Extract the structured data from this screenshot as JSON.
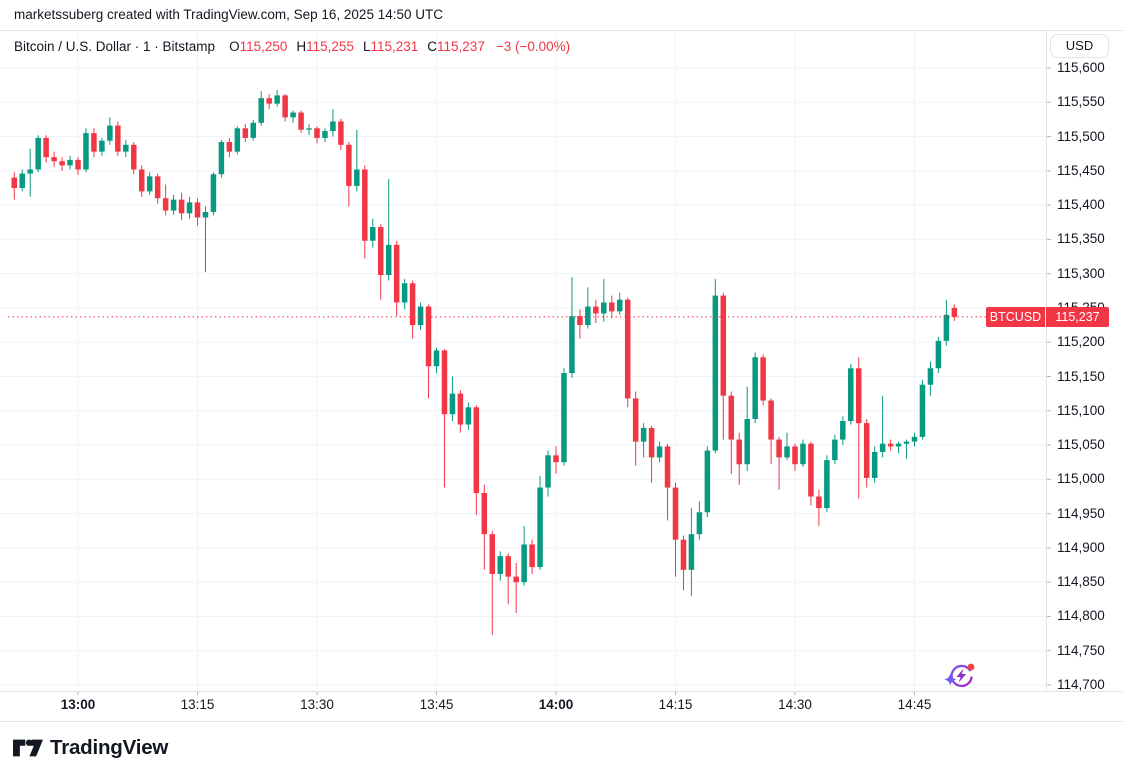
{
  "attribution": "marketssuberg created with TradingView.com, Sep 16, 2025 14:50 UTC",
  "header": {
    "title": "Bitcoin / U.S. Dollar · 1 · Bitstamp",
    "ohlc": [
      {
        "label": "O",
        "value": "115,250"
      },
      {
        "label": "H",
        "value": "115,255"
      },
      {
        "label": "L",
        "value": "115,231"
      },
      {
        "label": "C",
        "value": "115,237"
      }
    ],
    "change": "−3 (−0.00%)"
  },
  "currency_button": "USD",
  "price_flag": {
    "symbol": "BTCUSD",
    "price": "115,237"
  },
  "footer": {
    "logo_text": "TradingView"
  },
  "colors": {
    "up": "#089981",
    "down": "#F23645",
    "accent_red": "#F23645",
    "grid": "#F0F3FA",
    "tick": "#B2B5BE",
    "text": "#131722",
    "border": "#E0E3EB"
  },
  "chart_data": {
    "type": "candlestick",
    "title": "Bitcoin / U.S. Dollar · 1 · Bitstamp",
    "symbol": "BTCUSD",
    "exchange": "Bitstamp",
    "interval": "1",
    "quote_currency": "USD",
    "ylim": [
      114700,
      115600
    ],
    "grid": true,
    "y_ticks": [
      {
        "label": "115,600",
        "value": 115600
      },
      {
        "label": "115,550",
        "value": 115550
      },
      {
        "label": "115,500",
        "value": 115500
      },
      {
        "label": "115,450",
        "value": 115450
      },
      {
        "label": "115,400",
        "value": 115400
      },
      {
        "label": "115,350",
        "value": 115350
      },
      {
        "label": "115,300",
        "value": 115300
      },
      {
        "label": "115,250",
        "value": 115250
      },
      {
        "label": "115,200",
        "value": 115200
      },
      {
        "label": "115,150",
        "value": 115150
      },
      {
        "label": "115,100",
        "value": 115100
      },
      {
        "label": "115,050",
        "value": 115050
      },
      {
        "label": "115,000",
        "value": 115000
      },
      {
        "label": "114,950",
        "value": 114950
      },
      {
        "label": "114,900",
        "value": 114900
      },
      {
        "label": "114,850",
        "value": 114850
      },
      {
        "label": "114,800",
        "value": 114800
      },
      {
        "label": "114,750",
        "value": 114750
      },
      {
        "label": "114,700",
        "value": 114700
      }
    ],
    "x_ticks": [
      {
        "label": "13:00",
        "time": "13:00",
        "bold": true
      },
      {
        "label": "13:15",
        "time": "13:15",
        "bold": false
      },
      {
        "label": "13:30",
        "time": "13:30",
        "bold": false
      },
      {
        "label": "13:45",
        "time": "13:45",
        "bold": false
      },
      {
        "label": "14:00",
        "time": "14:00",
        "bold": true
      },
      {
        "label": "14:15",
        "time": "14:15",
        "bold": false
      },
      {
        "label": "14:30",
        "time": "14:30",
        "bold": false
      },
      {
        "label": "14:45",
        "time": "14:45",
        "bold": false
      }
    ],
    "last_price": {
      "value": 115237,
      "label": "115,237"
    },
    "candles": [
      [
        "12:52",
        115440,
        115448,
        115408,
        115425
      ],
      [
        "12:53",
        115425,
        115452,
        115420,
        115446
      ],
      [
        "12:54",
        115446,
        115482,
        115412,
        115452
      ],
      [
        "12:55",
        115452,
        115502,
        115448,
        115498
      ],
      [
        "12:56",
        115498,
        115502,
        115462,
        115470
      ],
      [
        "12:57",
        115470,
        115478,
        115456,
        115464
      ],
      [
        "12:58",
        115464,
        115470,
        115450,
        115458
      ],
      [
        "12:59",
        115458,
        115472,
        115452,
        115466
      ],
      [
        "13:00",
        115466,
        115470,
        115444,
        115452
      ],
      [
        "13:01",
        115452,
        115512,
        115448,
        115505
      ],
      [
        "13:02",
        115505,
        115512,
        115470,
        115478
      ],
      [
        "13:03",
        115478,
        115498,
        115472,
        115494
      ],
      [
        "13:04",
        115494,
        115528,
        115488,
        115516
      ],
      [
        "13:05",
        115516,
        115522,
        115472,
        115478
      ],
      [
        "13:06",
        115478,
        115495,
        115470,
        115488
      ],
      [
        "13:07",
        115488,
        115492,
        115445,
        115452
      ],
      [
        "13:08",
        115452,
        115458,
        115412,
        115420
      ],
      [
        "13:09",
        115420,
        115448,
        115415,
        115442
      ],
      [
        "13:10",
        115442,
        115446,
        115402,
        115410
      ],
      [
        "13:11",
        115410,
        115430,
        115385,
        115392
      ],
      [
        "13:12",
        115392,
        115415,
        115386,
        115408
      ],
      [
        "13:13",
        115408,
        115418,
        115378,
        115388
      ],
      [
        "13:14",
        115388,
        115412,
        115380,
        115404
      ],
      [
        "13:15",
        115404,
        115410,
        115370,
        115382
      ],
      [
        "13:16",
        115382,
        115398,
        115302,
        115390
      ],
      [
        "13:17",
        115390,
        115448,
        115385,
        115445
      ],
      [
        "13:18",
        115445,
        115495,
        115440,
        115492
      ],
      [
        "13:19",
        115492,
        115498,
        115470,
        115478
      ],
      [
        "13:20",
        115478,
        115515,
        115474,
        115512
      ],
      [
        "13:21",
        115512,
        115518,
        115492,
        115498
      ],
      [
        "13:22",
        115498,
        115524,
        115494,
        115520
      ],
      [
        "13:23",
        115520,
        115566,
        115516,
        115556
      ],
      [
        "13:24",
        115556,
        115562,
        115540,
        115548
      ],
      [
        "13:25",
        115548,
        115568,
        115544,
        115560
      ],
      [
        "13:26",
        115560,
        115562,
        115522,
        115528
      ],
      [
        "13:27",
        115528,
        115538,
        115520,
        115535
      ],
      [
        "13:28",
        115535,
        115538,
        115505,
        115510
      ],
      [
        "13:29",
        115510,
        115518,
        115502,
        115512
      ],
      [
        "13:30",
        115512,
        115515,
        115490,
        115498
      ],
      [
        "13:31",
        115498,
        115512,
        115492,
        115508
      ],
      [
        "13:32",
        115508,
        115540,
        115500,
        115522
      ],
      [
        "13:33",
        115522,
        115526,
        115480,
        115488
      ],
      [
        "13:34",
        115488,
        115492,
        115398,
        115428
      ],
      [
        "13:35",
        115428,
        115510,
        115420,
        115452
      ],
      [
        "13:36",
        115452,
        115458,
        115322,
        115348
      ],
      [
        "13:37",
        115348,
        115380,
        115338,
        115368
      ],
      [
        "13:38",
        115368,
        115372,
        115262,
        115298
      ],
      [
        "13:39",
        115298,
        115438,
        115290,
        115342
      ],
      [
        "13:40",
        115342,
        115348,
        115238,
        115258
      ],
      [
        "13:41",
        115258,
        115292,
        115248,
        115286
      ],
      [
        "13:42",
        115286,
        115290,
        115205,
        115225
      ],
      [
        "13:43",
        115225,
        115258,
        115218,
        115252
      ],
      [
        "13:44",
        115252,
        115255,
        115118,
        115165
      ],
      [
        "13:45",
        115165,
        115192,
        115155,
        115188
      ],
      [
        "13:46",
        115188,
        115190,
        114988,
        115095
      ],
      [
        "13:47",
        115095,
        115150,
        115085,
        115125
      ],
      [
        "13:48",
        115125,
        115130,
        115068,
        115080
      ],
      [
        "13:49",
        115080,
        115112,
        115072,
        115105
      ],
      [
        "13:50",
        115105,
        115108,
        114948,
        114980
      ],
      [
        "13:51",
        114980,
        114992,
        114868,
        114920
      ],
      [
        "13:52",
        114920,
        114925,
        114773,
        114862
      ],
      [
        "13:53",
        114862,
        114895,
        114852,
        114888
      ],
      [
        "13:54",
        114888,
        114892,
        114818,
        114858
      ],
      [
        "13:55",
        114858,
        114878,
        114805,
        114850
      ],
      [
        "13:56",
        114850,
        114932,
        114845,
        114905
      ],
      [
        "13:57",
        114905,
        114912,
        114862,
        114872
      ],
      [
        "13:58",
        114872,
        115005,
        114868,
        114988
      ],
      [
        "13:59",
        114988,
        115042,
        114975,
        115035
      ],
      [
        "14:00",
        115035,
        115048,
        115008,
        115025
      ],
      [
        "14:01",
        115025,
        115162,
        115020,
        115155
      ],
      [
        "14:02",
        115155,
        115295,
        115148,
        115238
      ],
      [
        "14:03",
        115238,
        115248,
        115205,
        115225
      ],
      [
        "14:04",
        115225,
        115280,
        115220,
        115252
      ],
      [
        "14:05",
        115252,
        115262,
        115228,
        115242
      ],
      [
        "14:06",
        115242,
        115292,
        115230,
        115258
      ],
      [
        "14:07",
        115258,
        115268,
        115235,
        115245
      ],
      [
        "14:08",
        115245,
        115272,
        115240,
        115262
      ],
      [
        "14:09",
        115262,
        115265,
        115105,
        115118
      ],
      [
        "14:10",
        115118,
        115128,
        115020,
        115055
      ],
      [
        "14:11",
        115055,
        115082,
        115032,
        115075
      ],
      [
        "14:12",
        115075,
        115078,
        114995,
        115032
      ],
      [
        "14:13",
        115032,
        115055,
        115025,
        115048
      ],
      [
        "14:14",
        115048,
        115052,
        114940,
        114988
      ],
      [
        "14:15",
        114988,
        114995,
        114858,
        114912
      ],
      [
        "14:16",
        114912,
        114918,
        114838,
        114868
      ],
      [
        "14:17",
        114868,
        114958,
        114830,
        114920
      ],
      [
        "14:18",
        114920,
        114968,
        114912,
        114952
      ],
      [
        "14:19",
        114952,
        115048,
        114945,
        115042
      ],
      [
        "14:20",
        115042,
        115292,
        115038,
        115268
      ],
      [
        "14:21",
        115268,
        115272,
        115058,
        115122
      ],
      [
        "14:22",
        115122,
        115128,
        115008,
        115058
      ],
      [
        "14:23",
        115058,
        115068,
        114992,
        115022
      ],
      [
        "14:24",
        115022,
        115135,
        115012,
        115088
      ],
      [
        "14:25",
        115088,
        115185,
        115082,
        115178
      ],
      [
        "14:26",
        115178,
        115182,
        115108,
        115115
      ],
      [
        "14:27",
        115115,
        115118,
        115022,
        115058
      ],
      [
        "14:28",
        115058,
        115062,
        114985,
        115032
      ],
      [
        "14:29",
        115032,
        115068,
        115028,
        115048
      ],
      [
        "14:30",
        115048,
        115052,
        115012,
        115022
      ],
      [
        "14:31",
        115022,
        115058,
        115018,
        115052
      ],
      [
        "14:32",
        115052,
        115055,
        114962,
        114975
      ],
      [
        "14:33",
        114975,
        114985,
        114932,
        114958
      ],
      [
        "14:34",
        114958,
        115035,
        114952,
        115028
      ],
      [
        "14:35",
        115028,
        115065,
        115022,
        115058
      ],
      [
        "14:36",
        115058,
        115092,
        115050,
        115085
      ],
      [
        "14:37",
        115085,
        115168,
        115080,
        115162
      ],
      [
        "14:38",
        115162,
        115178,
        114972,
        115082
      ],
      [
        "14:39",
        115082,
        115088,
        114988,
        115002
      ],
      [
        "14:40",
        115002,
        115048,
        114995,
        115040
      ],
      [
        "14:41",
        115040,
        115122,
        115032,
        115052
      ],
      [
        "14:42",
        115052,
        115058,
        115042,
        115048
      ],
      [
        "14:43",
        115048,
        115055,
        115038,
        115052
      ],
      [
        "14:44",
        115052,
        115058,
        115030,
        115055
      ],
      [
        "14:45",
        115055,
        115068,
        115048,
        115062
      ],
      [
        "14:46",
        115062,
        115145,
        115058,
        115138
      ],
      [
        "14:47",
        115138,
        115172,
        115122,
        115162
      ],
      [
        "14:48",
        115162,
        115208,
        115155,
        115202
      ],
      [
        "14:49",
        115202,
        115262,
        115195,
        115240
      ],
      [
        "14:50",
        115250,
        115255,
        115231,
        115237
      ]
    ]
  }
}
